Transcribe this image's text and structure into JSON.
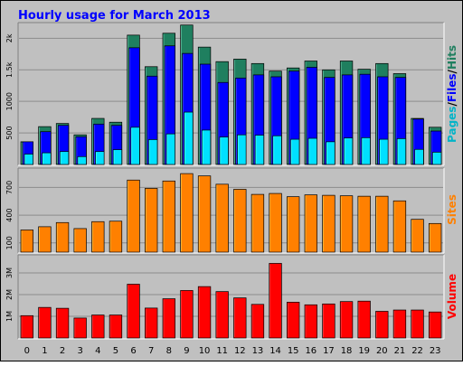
{
  "chart_data": {
    "type": "bar",
    "title": "Hourly usage for March 2013",
    "categories": [
      "0",
      "1",
      "2",
      "3",
      "4",
      "5",
      "6",
      "7",
      "8",
      "9",
      "10",
      "11",
      "12",
      "13",
      "14",
      "15",
      "16",
      "17",
      "18",
      "19",
      "20",
      "21",
      "22",
      "23"
    ],
    "panels": [
      {
        "name": "pages-files-hits",
        "ylabel_parts": [
          "Pages",
          "/",
          "Files",
          "/",
          "Hits"
        ],
        "yticks": [
          500,
          1000,
          1500,
          2000
        ],
        "ytick_labels": [
          "500",
          "1000",
          "1.5k",
          "2k"
        ],
        "ylim": [
          0,
          2220
        ],
        "series": [
          {
            "name": "Hits",
            "color": "#1f7f5f",
            "values": [
              360,
              600,
              650,
              470,
              730,
              670,
              2050,
              1550,
              2080,
              2210,
              1860,
              1630,
              1670,
              1600,
              1480,
              1530,
              1640,
              1500,
              1640,
              1510,
              1600,
              1440,
              730,
              590
            ]
          },
          {
            "name": "Files",
            "color": "#0000ff",
            "values": [
              360,
              520,
              620,
              440,
              640,
              620,
              1850,
              1400,
              1880,
              1760,
              1590,
              1300,
              1370,
              1420,
              1390,
              1480,
              1540,
              1380,
              1420,
              1430,
              1390,
              1380,
              720,
              530
            ]
          },
          {
            "name": "Pages",
            "color": "#00e0ff",
            "values": [
              165,
              185,
              205,
              125,
              205,
              235,
              590,
              395,
              485,
              830,
              545,
              435,
              470,
              465,
              455,
              400,
              415,
              360,
              420,
              425,
              400,
              410,
              240,
              195
            ]
          }
        ]
      },
      {
        "name": "sites",
        "ylabel": "Sites",
        "yticks": [
          100,
          400,
          700
        ],
        "ytick_labels": [
          "100",
          "400",
          "700"
        ],
        "ylim": [
          0,
          890
        ],
        "series": [
          {
            "name": "Sites",
            "color": "#ff8000",
            "values": [
              240,
              275,
              320,
              255,
              330,
              335,
              780,
              690,
              770,
              850,
              825,
              735,
              680,
              625,
              635,
              600,
              620,
              615,
              610,
              605,
              605,
              555,
              355,
              310
            ]
          }
        ]
      },
      {
        "name": "volume",
        "ylabel": "Volume",
        "yticks": [
          1000000,
          2000000,
          3000000
        ],
        "ytick_labels": [
          "1M",
          "2M",
          "3M"
        ],
        "ylim": [
          0,
          3750000
        ],
        "series": [
          {
            "name": "Volume",
            "color": "#ff0000",
            "values": [
              1030000,
              1410000,
              1370000,
              920000,
              1060000,
              1060000,
              2480000,
              1380000,
              1810000,
              2190000,
              2370000,
              2140000,
              1850000,
              1550000,
              3440000,
              1650000,
              1530000,
              1570000,
              1680000,
              1700000,
              1230000,
              1290000,
              1290000,
              1200000
            ]
          }
        ]
      }
    ]
  }
}
